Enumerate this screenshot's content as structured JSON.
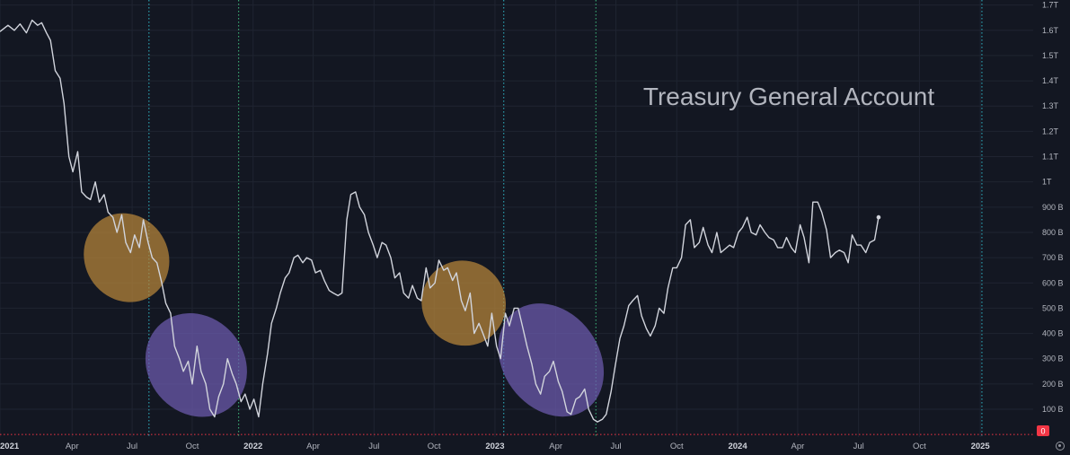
{
  "chart_data": {
    "type": "line",
    "title": "Treasury General Account",
    "series": [
      {
        "values": [
          [
            0,
            1595
          ],
          [
            1,
            1620
          ],
          [
            1.8,
            1600
          ],
          [
            2.5,
            1625
          ],
          [
            3.3,
            1590
          ],
          [
            4,
            1640
          ],
          [
            4.7,
            1620
          ],
          [
            5.2,
            1630
          ],
          [
            5.8,
            1590
          ],
          [
            6.3,
            1560
          ],
          [
            6.9,
            1440
          ],
          [
            7.5,
            1410
          ],
          [
            8,
            1310
          ],
          [
            8.6,
            1100
          ],
          [
            9.1,
            1040
          ],
          [
            9.7,
            1120
          ],
          [
            10.2,
            960
          ],
          [
            10.8,
            940
          ],
          [
            11.3,
            930
          ],
          [
            11.9,
            1000
          ],
          [
            12.4,
            920
          ],
          [
            13,
            950
          ],
          [
            13.5,
            880
          ],
          [
            14.1,
            860
          ],
          [
            14.6,
            800
          ],
          [
            15.2,
            870
          ],
          [
            15.7,
            760
          ],
          [
            16.3,
            720
          ],
          [
            16.8,
            790
          ],
          [
            17.4,
            740
          ],
          [
            17.9,
            850
          ],
          [
            18.5,
            760
          ],
          [
            19,
            700
          ],
          [
            19.6,
            680
          ],
          [
            20.2,
            600
          ],
          [
            20.7,
            520
          ],
          [
            21.3,
            480
          ],
          [
            21.8,
            350
          ],
          [
            22.4,
            300
          ],
          [
            22.9,
            250
          ],
          [
            23.5,
            290
          ],
          [
            24,
            200
          ],
          [
            24.6,
            350
          ],
          [
            25.1,
            250
          ],
          [
            25.7,
            200
          ],
          [
            26.2,
            100
          ],
          [
            26.8,
            70
          ],
          [
            27.3,
            150
          ],
          [
            27.9,
            200
          ],
          [
            28.4,
            300
          ],
          [
            29,
            240
          ],
          [
            29.5,
            200
          ],
          [
            30.1,
            130
          ],
          [
            30.6,
            160
          ],
          [
            31.2,
            100
          ],
          [
            31.7,
            140
          ],
          [
            32.3,
            70
          ],
          [
            32.8,
            200
          ],
          [
            33.4,
            320
          ],
          [
            33.9,
            440
          ],
          [
            34.5,
            500
          ],
          [
            35,
            560
          ],
          [
            35.6,
            620
          ],
          [
            36.1,
            640
          ],
          [
            36.7,
            700
          ],
          [
            37.2,
            710
          ],
          [
            37.8,
            680
          ],
          [
            38.3,
            700
          ],
          [
            38.9,
            690
          ],
          [
            39.4,
            640
          ],
          [
            40,
            650
          ],
          [
            40.5,
            610
          ],
          [
            41.1,
            570
          ],
          [
            41.6,
            560
          ],
          [
            42.2,
            550
          ],
          [
            42.7,
            560
          ],
          [
            43.3,
            850
          ],
          [
            43.8,
            950
          ],
          [
            44.4,
            960
          ],
          [
            44.9,
            900
          ],
          [
            45.5,
            870
          ],
          [
            46,
            800
          ],
          [
            46.6,
            750
          ],
          [
            47.1,
            700
          ],
          [
            47.7,
            760
          ],
          [
            48.2,
            750
          ],
          [
            48.8,
            700
          ],
          [
            49.3,
            620
          ],
          [
            49.9,
            640
          ],
          [
            50.4,
            560
          ],
          [
            51,
            540
          ],
          [
            51.5,
            590
          ],
          [
            52.1,
            540
          ],
          [
            52.6,
            530
          ],
          [
            53.2,
            660
          ],
          [
            53.7,
            580
          ],
          [
            54.3,
            600
          ],
          [
            54.8,
            690
          ],
          [
            55.4,
            650
          ],
          [
            55.9,
            660
          ],
          [
            56.5,
            610
          ],
          [
            57,
            640
          ],
          [
            57.6,
            530
          ],
          [
            58.1,
            490
          ],
          [
            58.7,
            560
          ],
          [
            59.2,
            400
          ],
          [
            59.8,
            440
          ],
          [
            60.3,
            400
          ],
          [
            60.9,
            350
          ],
          [
            61.4,
            480
          ],
          [
            62,
            350
          ],
          [
            62.5,
            300
          ],
          [
            63.1,
            480
          ],
          [
            63.6,
            430
          ],
          [
            64.2,
            500
          ],
          [
            64.7,
            500
          ],
          [
            65.3,
            420
          ],
          [
            65.8,
            350
          ],
          [
            66.4,
            280
          ],
          [
            66.9,
            200
          ],
          [
            67.5,
            160
          ],
          [
            68,
            230
          ],
          [
            68.6,
            250
          ],
          [
            69.1,
            290
          ],
          [
            69.7,
            210
          ],
          [
            70.2,
            170
          ],
          [
            70.8,
            90
          ],
          [
            71.3,
            80
          ],
          [
            71.9,
            140
          ],
          [
            72.4,
            150
          ],
          [
            73,
            180
          ],
          [
            73.5,
            100
          ],
          [
            74.1,
            60
          ],
          [
            74.6,
            50
          ],
          [
            75.2,
            60
          ],
          [
            75.7,
            80
          ],
          [
            76.3,
            170
          ],
          [
            76.8,
            270
          ],
          [
            77.4,
            380
          ],
          [
            77.9,
            430
          ],
          [
            78.5,
            510
          ],
          [
            79,
            530
          ],
          [
            79.6,
            550
          ],
          [
            80.1,
            470
          ],
          [
            80.7,
            420
          ],
          [
            81.2,
            390
          ],
          [
            81.8,
            430
          ],
          [
            82.3,
            500
          ],
          [
            82.9,
            480
          ],
          [
            83.4,
            580
          ],
          [
            84,
            660
          ],
          [
            84.5,
            660
          ],
          [
            85.1,
            700
          ],
          [
            85.6,
            830
          ],
          [
            86.2,
            850
          ],
          [
            86.7,
            740
          ],
          [
            87.3,
            760
          ],
          [
            87.8,
            820
          ],
          [
            88.4,
            750
          ],
          [
            88.9,
            720
          ],
          [
            89.5,
            800
          ],
          [
            90,
            720
          ],
          [
            91.1,
            750
          ],
          [
            91.6,
            740
          ],
          [
            92.2,
            800
          ],
          [
            92.7,
            820
          ],
          [
            93.3,
            860
          ],
          [
            93.8,
            800
          ],
          [
            94.4,
            790
          ],
          [
            94.9,
            830
          ],
          [
            95.5,
            800
          ],
          [
            96,
            780
          ],
          [
            96.6,
            770
          ],
          [
            97.1,
            740
          ],
          [
            97.7,
            740
          ],
          [
            98.2,
            780
          ],
          [
            98.8,
            740
          ],
          [
            99.3,
            720
          ],
          [
            99.9,
            830
          ],
          [
            100.4,
            780
          ],
          [
            101,
            680
          ],
          [
            101.5,
            920
          ],
          [
            102.1,
            920
          ],
          [
            102.6,
            880
          ],
          [
            103.2,
            810
          ],
          [
            103.7,
            700
          ],
          [
            104.3,
            720
          ],
          [
            104.8,
            730
          ],
          [
            105.4,
            720
          ],
          [
            105.9,
            680
          ],
          [
            106.4,
            790
          ],
          [
            107,
            750
          ],
          [
            107.5,
            750
          ],
          [
            108.1,
            720
          ],
          [
            108.6,
            760
          ],
          [
            109.2,
            770
          ],
          [
            109.7,
            860
          ]
        ]
      }
    ],
    "x_unit": "weeks",
    "xlim": [
      0,
      129
    ],
    "ylim": [
      -10,
      1720
    ],
    "y_ticks": [
      {
        "v": 1700,
        "label": "1.7T"
      },
      {
        "v": 1600,
        "label": "1.6T"
      },
      {
        "v": 1500,
        "label": "1.5T"
      },
      {
        "v": 1400,
        "label": "1.4T"
      },
      {
        "v": 1300,
        "label": "1.3T"
      },
      {
        "v": 1200,
        "label": "1.2T"
      },
      {
        "v": 1100,
        "label": "1.1T"
      },
      {
        "v": 1000,
        "label": "1T"
      },
      {
        "v": 900,
        "label": "900 B"
      },
      {
        "v": 800,
        "label": "800 B"
      },
      {
        "v": 700,
        "label": "700 B"
      },
      {
        "v": 600,
        "label": "600 B"
      },
      {
        "v": 500,
        "label": "500 B"
      },
      {
        "v": 400,
        "label": "400 B"
      },
      {
        "v": 300,
        "label": "300 B"
      },
      {
        "v": 200,
        "label": "200 B"
      },
      {
        "v": 100,
        "label": "100 B"
      }
    ],
    "zero_badge": "0",
    "x_ticks": [
      {
        "t": 0,
        "label": "2021",
        "major": true
      },
      {
        "t": 9,
        "label": "Apr",
        "major": false
      },
      {
        "t": 16.5,
        "label": "Jul",
        "major": false
      },
      {
        "t": 24,
        "label": "Oct",
        "major": false
      },
      {
        "t": 31.6,
        "label": "2022",
        "major": true
      },
      {
        "t": 39.1,
        "label": "Apr",
        "major": false
      },
      {
        "t": 46.7,
        "label": "Jul",
        "major": false
      },
      {
        "t": 54.2,
        "label": "Oct",
        "major": false
      },
      {
        "t": 61.8,
        "label": "2023",
        "major": true
      },
      {
        "t": 69.4,
        "label": "Apr",
        "major": false
      },
      {
        "t": 76.9,
        "label": "Jul",
        "major": false
      },
      {
        "t": 84.5,
        "label": "Oct",
        "major": false
      },
      {
        "t": 92.1,
        "label": "2024",
        "major": true
      },
      {
        "t": 99.6,
        "label": "Apr",
        "major": false
      },
      {
        "t": 107.2,
        "label": "Jul",
        "major": false
      },
      {
        "t": 114.8,
        "label": "Oct",
        "major": false
      },
      {
        "t": 122.4,
        "label": "2025",
        "major": true
      }
    ],
    "vertical_lines": [
      {
        "t": 18.6,
        "color": "#2fb8c8"
      },
      {
        "t": 29.8,
        "color": "#3fbf7f"
      },
      {
        "t": 62.9,
        "color": "#2fb8c8"
      },
      {
        "t": 74.4,
        "color": "#3fbf7f"
      },
      {
        "t": 122.6,
        "color": "#2fb8c8"
      }
    ],
    "highlight_ellipses": [
      {
        "t": 15.8,
        "v": 700,
        "rt": 5.2,
        "rv": 180,
        "angle": 58,
        "color": "#b8863a"
      },
      {
        "t": 24.5,
        "v": 275,
        "rt": 6.0,
        "rv": 215,
        "angle": 50,
        "color": "#6d5bb0"
      },
      {
        "t": 57.9,
        "v": 520,
        "rt": 5.2,
        "rv": 170,
        "angle": 55,
        "color": "#b8863a"
      },
      {
        "t": 68.8,
        "v": 295,
        "rt": 6.0,
        "rv": 240,
        "angle": 54,
        "color": "#6d5bb0"
      }
    ],
    "colors": {
      "background": "#131722",
      "grid": "#1f2431",
      "line": "#d1d4dc",
      "zero_line": "#f23645"
    }
  }
}
